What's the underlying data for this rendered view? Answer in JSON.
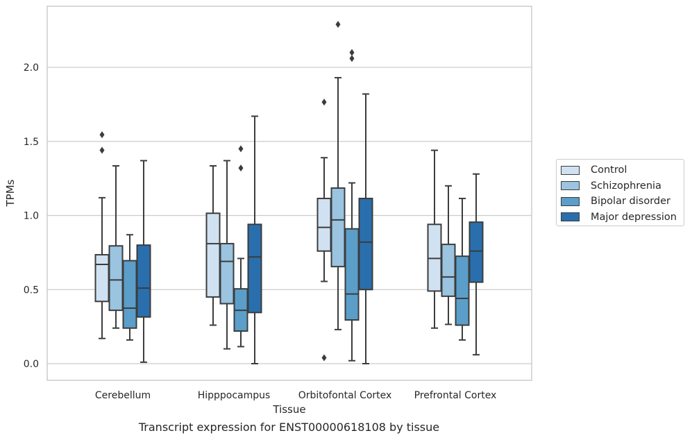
{
  "caption": "Transcript expression for ENST00000618108 by tissue",
  "chart_data": {
    "type": "box",
    "xlabel": "Tissue",
    "ylabel": "TPMs",
    "ylim": [
      -0.11,
      2.41
    ],
    "yticks": [
      "0.0",
      "0.5",
      "1.0",
      "1.5",
      "2.0"
    ],
    "grid": true,
    "legend_position": "right",
    "categories": [
      "Cerebellum",
      "Hipppocampus",
      "Orbitofontal Cortex",
      "Prefrontal Cortex"
    ],
    "series": [
      {
        "name": "Control",
        "color": "#d0e2f2",
        "boxes": [
          {
            "whislo": 0.17,
            "q1": 0.42,
            "med": 0.67,
            "q3": 0.735,
            "whishi": 1.12,
            "fliers": [
              1.44,
              1.545
            ]
          },
          {
            "whislo": 0.26,
            "q1": 0.45,
            "med": 0.81,
            "q3": 1.015,
            "whishi": 1.335,
            "fliers": []
          },
          {
            "whislo": 0.555,
            "q1": 0.76,
            "med": 0.92,
            "q3": 1.115,
            "whishi": 1.39,
            "fliers": [
              1.765,
              0.04
            ]
          },
          {
            "whislo": 0.24,
            "q1": 0.49,
            "med": 0.71,
            "q3": 0.94,
            "whishi": 1.44,
            "fliers": []
          }
        ]
      },
      {
        "name": "Schizophrenia",
        "color": "#9ac4e0",
        "boxes": [
          {
            "whislo": 0.24,
            "q1": 0.36,
            "med": 0.565,
            "q3": 0.795,
            "whishi": 1.335,
            "fliers": []
          },
          {
            "whislo": 0.1,
            "q1": 0.405,
            "med": 0.69,
            "q3": 0.81,
            "whishi": 1.37,
            "fliers": []
          },
          {
            "whislo": 0.23,
            "q1": 0.655,
            "med": 0.97,
            "q3": 1.185,
            "whishi": 1.93,
            "fliers": [
              2.29
            ]
          },
          {
            "whislo": 0.265,
            "q1": 0.455,
            "med": 0.585,
            "q3": 0.805,
            "whishi": 1.2,
            "fliers": []
          }
        ]
      },
      {
        "name": "Bipolar disorder",
        "color": "#5b9ec9",
        "boxes": [
          {
            "whislo": 0.16,
            "q1": 0.24,
            "med": 0.375,
            "q3": 0.695,
            "whishi": 0.87,
            "fliers": []
          },
          {
            "whislo": 0.115,
            "q1": 0.22,
            "med": 0.36,
            "q3": 0.505,
            "whishi": 0.71,
            "fliers": [
              1.32,
              1.45
            ]
          },
          {
            "whislo": 0.02,
            "q1": 0.295,
            "med": 0.47,
            "q3": 0.91,
            "whishi": 1.22,
            "fliers": [
              2.06,
              2.1
            ]
          },
          {
            "whislo": 0.16,
            "q1": 0.26,
            "med": 0.44,
            "q3": 0.725,
            "whishi": 1.115,
            "fliers": []
          }
        ]
      },
      {
        "name": "Major depression",
        "color": "#2a6fad",
        "boxes": [
          {
            "whislo": 0.01,
            "q1": 0.315,
            "med": 0.51,
            "q3": 0.8,
            "whishi": 1.37,
            "fliers": []
          },
          {
            "whislo": 0.0,
            "q1": 0.345,
            "med": 0.72,
            "q3": 0.94,
            "whishi": 1.67,
            "fliers": []
          },
          {
            "whislo": 0.0,
            "q1": 0.5,
            "med": 0.82,
            "q3": 1.115,
            "whishi": 1.82,
            "fliers": []
          },
          {
            "whislo": 0.06,
            "q1": 0.55,
            "med": 0.76,
            "q3": 0.955,
            "whishi": 1.28,
            "fliers": []
          }
        ]
      }
    ]
  }
}
